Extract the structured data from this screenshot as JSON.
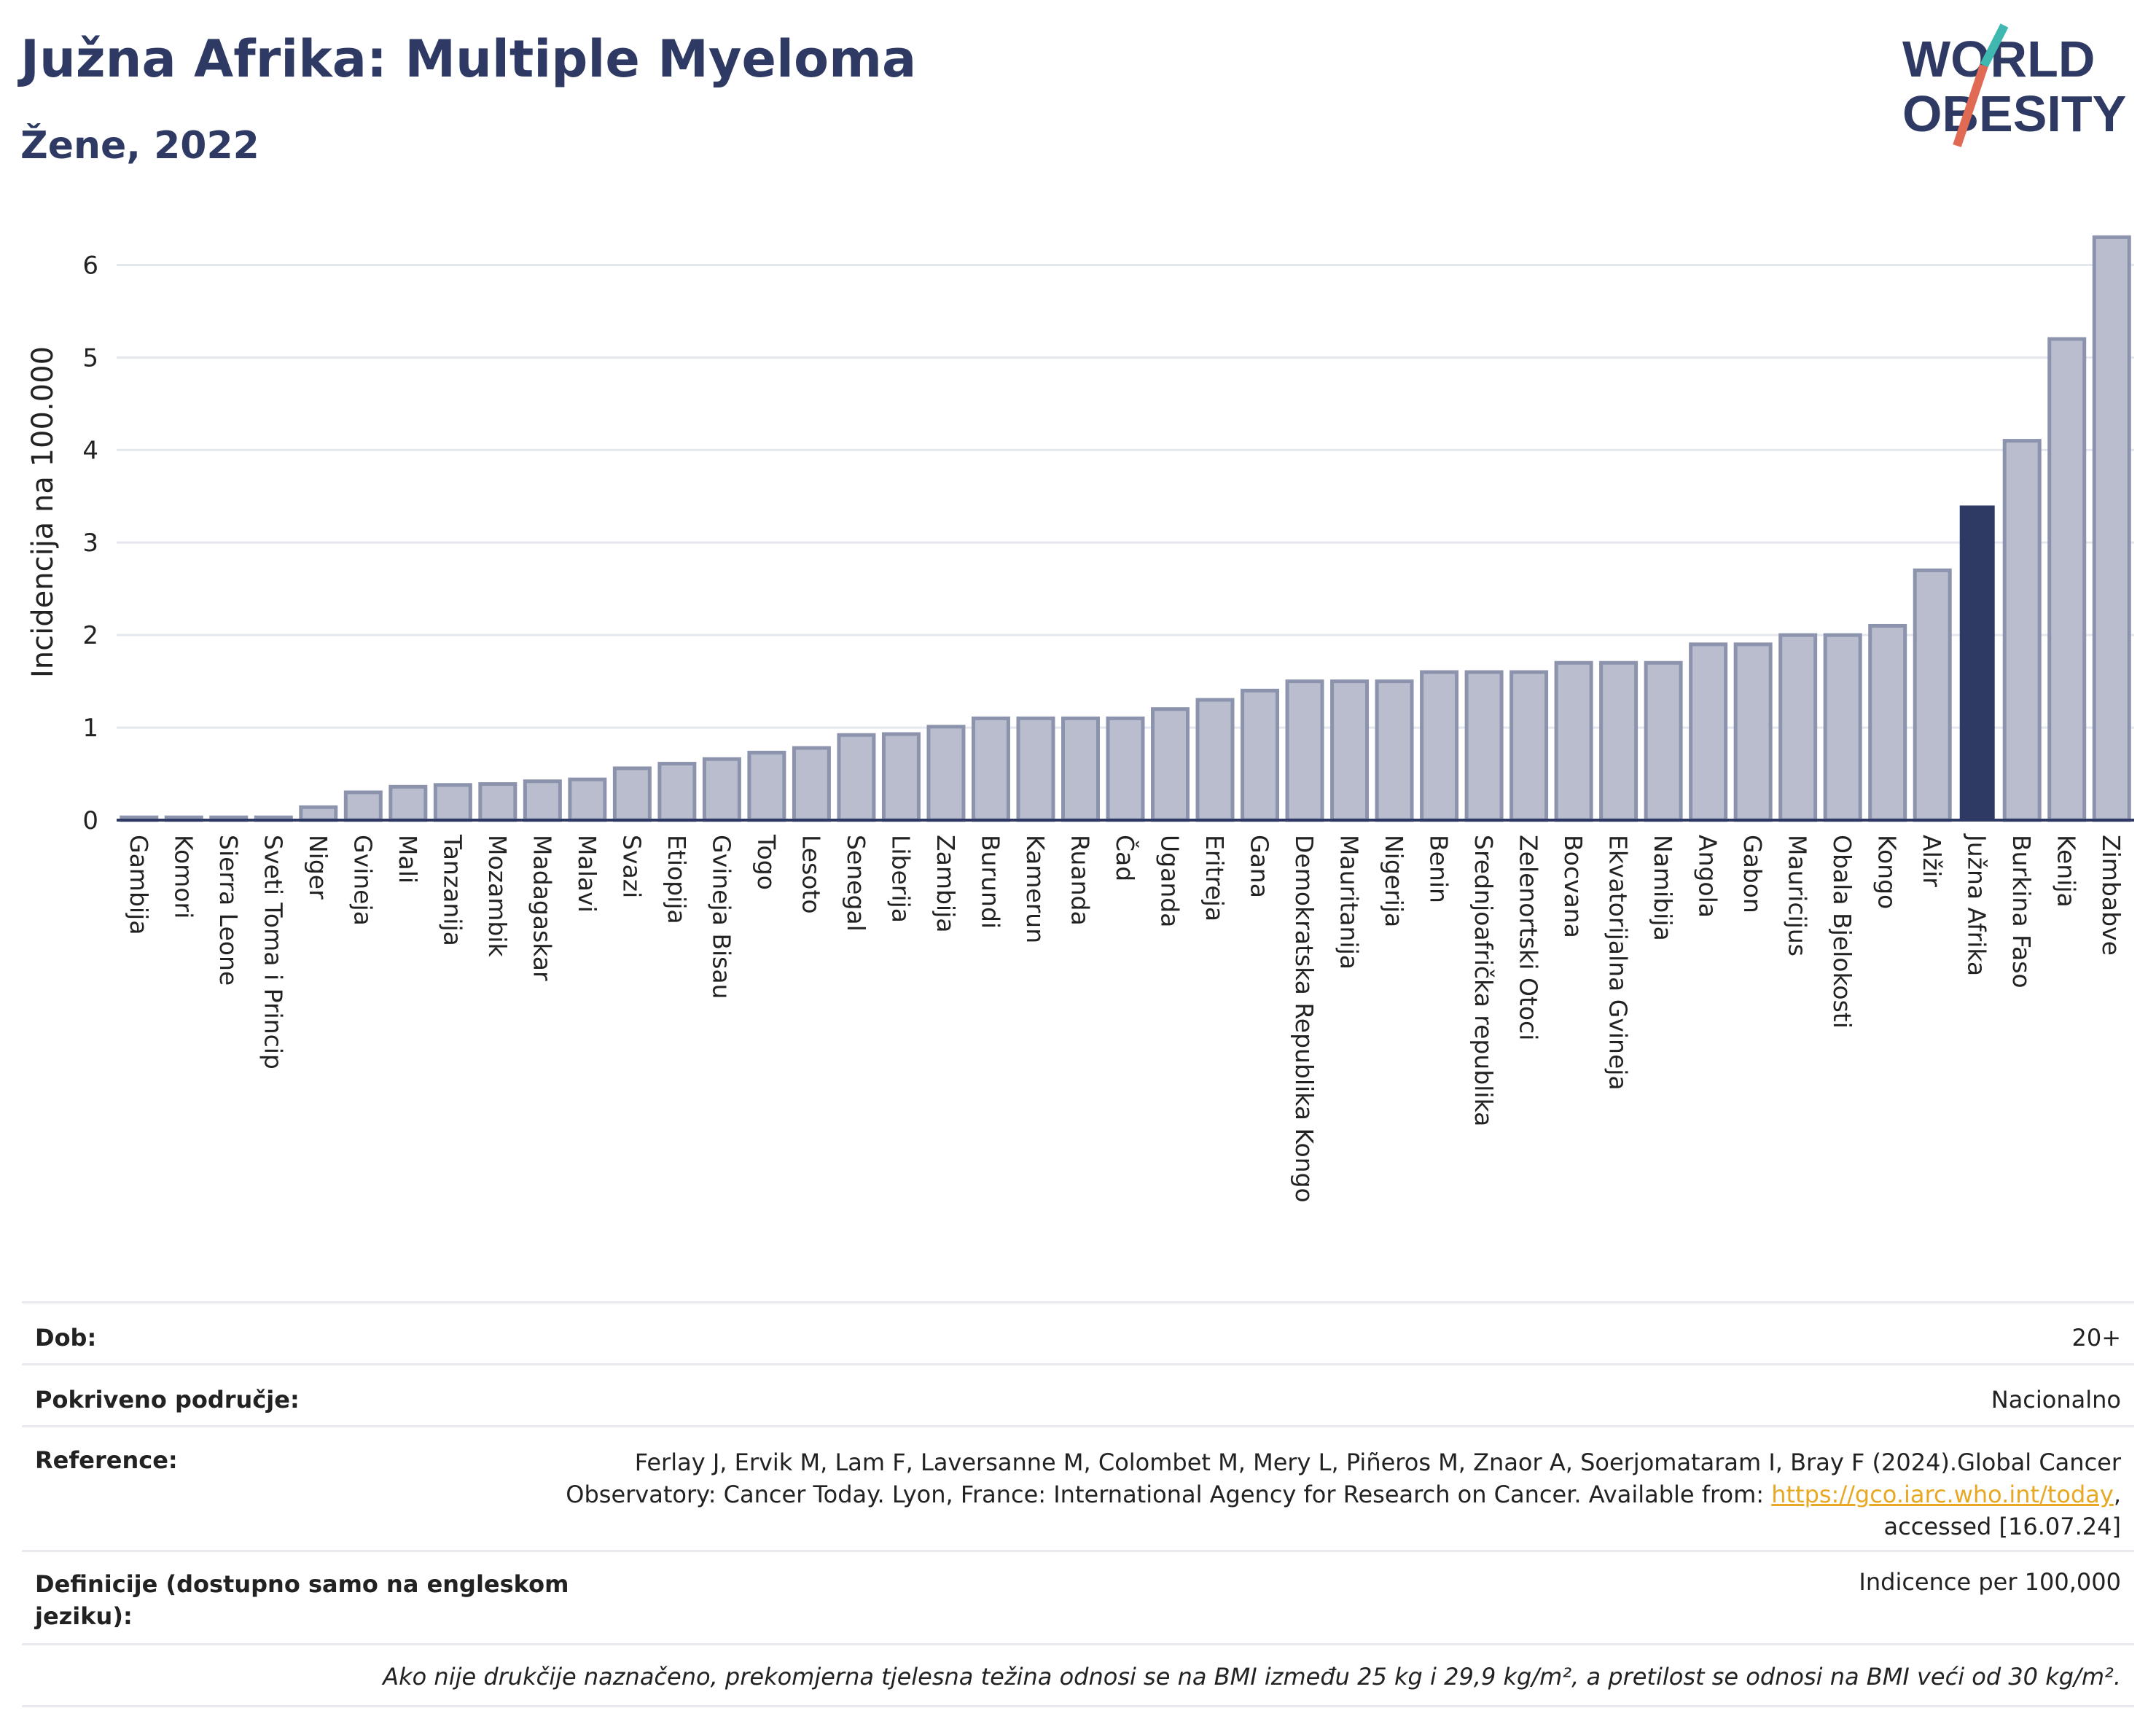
{
  "header": {
    "title": "Južna Afrika: Multiple Myeloma",
    "subtitle": "Žene, 2022"
  },
  "logo": {
    "line1": "WORLD",
    "line2": "OBESITY",
    "colors": {
      "text": "#2e3a63",
      "slash_top": "#3fb8b0",
      "slash_bottom": "#e06a54"
    }
  },
  "chart_data": {
    "type": "bar",
    "title": "Južna Afrika: Multiple Myeloma",
    "subtitle": "Žene, 2022",
    "xlabel": "",
    "ylabel": "Incidencija na 100.000",
    "ylim": [
      0,
      6.5
    ],
    "yticks": [
      0,
      1,
      2,
      3,
      4,
      5,
      6
    ],
    "grid": true,
    "highlight": "Južna Afrika",
    "colors": {
      "bar": "#b9bdcd",
      "bar_edge": "#8c93ad",
      "highlight": "#2e3a63",
      "grid": "#e5e7ee"
    },
    "categories": [
      "Gambija",
      "Komori",
      "Sierra Leone",
      "Sveti Toma i Princip",
      "Niger",
      "Gvineja",
      "Mali",
      "Tanzanija",
      "Mozambik",
      "Madagaskar",
      "Malavi",
      "Svazi",
      "Etiopija",
      "Gvineja Bisau",
      "Togo",
      "Lesoto",
      "Senegal",
      "Liberija",
      "Zambija",
      "Burundi",
      "Kamerun",
      "Ruanda",
      "Čad",
      "Uganda",
      "Eritreja",
      "Gana",
      "Demokratska Republika Kongo",
      "Mauritanija",
      "Nigerija",
      "Benin",
      "Srednjoafrička republika",
      "Zelenortski Otoci",
      "Bocvana",
      "Ekvatorijalna Gvineja",
      "Namibija",
      "Angola",
      "Gabon",
      "Mauricijus",
      "Obala Bjelokosti",
      "Kongo",
      "Alžir",
      "Južna Afrika",
      "Burkina Faso",
      "Kenija",
      "Zimbabve"
    ],
    "values": [
      0.03,
      0.03,
      0.03,
      0.03,
      0.14,
      0.3,
      0.36,
      0.38,
      0.39,
      0.42,
      0.44,
      0.56,
      0.61,
      0.66,
      0.73,
      0.78,
      0.92,
      0.93,
      1.01,
      1.1,
      1.1,
      1.1,
      1.1,
      1.2,
      1.3,
      1.4,
      1.5,
      1.5,
      1.5,
      1.6,
      1.6,
      1.6,
      1.7,
      1.7,
      1.7,
      1.9,
      1.9,
      2.0,
      2.0,
      2.1,
      2.7,
      3.4,
      4.1,
      5.2,
      6.3
    ]
  },
  "info": {
    "age": {
      "label": "Dob:",
      "value": "20+"
    },
    "coverage": {
      "label": "Pokriveno područje:",
      "value": "Nacionalno"
    },
    "reference": {
      "label": "Reference:",
      "line1": "Ferlay J, Ervik M, Lam F, Laversanne M, Colombet M, Mery L, Piñeros M, Znaor A, Soerjomataram I, Bray F (2024).Global Cancer",
      "line2_before": "Observatory: Cancer Today. Lyon, France: International Agency for Research on Cancer. Available from: ",
      "link": "https://gco.iarc.who.int/today",
      "line2_after": ",",
      "line3": "accessed [16.07.24]"
    },
    "definitions": {
      "label_line1": "Definicije (dostupno samo na engleskom",
      "label_line2": "jeziku):",
      "value": "Indicence per 100,000"
    },
    "note": "Ako nije drukčije naznačeno, prekomjerna tjelesna težina odnosi se na BMI između 25 kg i 29,9 kg/m², a pretilost se odnosi na BMI veći od 30 kg/m²."
  }
}
